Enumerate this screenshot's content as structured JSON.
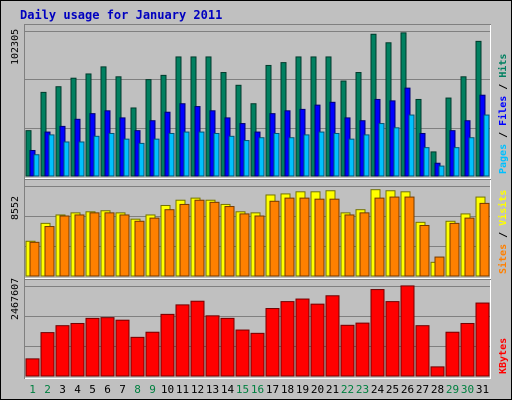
{
  "colors": {
    "background": "#c0c0c0",
    "title": "#0000c0",
    "hits": "#008060",
    "files": "#0000ff",
    "pages": "#00c0ff",
    "visits": "#ffff00",
    "sites": "#ff8000",
    "kbytes": "#ff0000",
    "weekday": "#000000",
    "weekend": "#008040"
  },
  "chart_data": {
    "type": "bar",
    "title": "Daily usage for January 2011",
    "categories": [
      "1",
      "2",
      "3",
      "4",
      "5",
      "6",
      "7",
      "8",
      "9",
      "10",
      "11",
      "12",
      "13",
      "14",
      "15",
      "16",
      "17",
      "18",
      "19",
      "20",
      "21",
      "22",
      "23",
      "24",
      "25",
      "26",
      "27",
      "28",
      "29",
      "30",
      "31"
    ],
    "weekend_days": [
      "1",
      "2",
      "8",
      "9",
      "15",
      "16",
      "22",
      "23",
      "29",
      "30"
    ],
    "panels": [
      {
        "name": "pages-files-hits",
        "max_label": "102305",
        "ylim": [
          0,
          102305
        ],
        "legend": [
          {
            "key": "pages",
            "label": "Pages",
            "color": "#00c0ff"
          },
          {
            "key": "sep1",
            "label": " / ",
            "color": "#000000"
          },
          {
            "key": "files",
            "label": "Files",
            "color": "#0000ff"
          },
          {
            "key": "sep2",
            "label": " / ",
            "color": "#000000"
          },
          {
            "key": "hits",
            "label": "Hits",
            "color": "#008060"
          }
        ],
        "series": [
          {
            "name": "Hits",
            "color": "#008060",
            "values": [
              32000,
              59000,
              63000,
              69000,
              72000,
              77000,
              70000,
              48000,
              68000,
              71000,
              84000,
              84000,
              84000,
              73000,
              64000,
              51000,
              78000,
              80000,
              84000,
              84000,
              84000,
              67000,
              73000,
              100000,
              94000,
              101000,
              54000,
              17000,
              55000,
              70000,
              95000
            ]
          },
          {
            "name": "Files",
            "color": "#0000ff",
            "values": [
              18000,
              31000,
              35000,
              40000,
              44000,
              46000,
              41000,
              32000,
              39000,
              45000,
              51000,
              49000,
              46000,
              41000,
              37000,
              31000,
              44000,
              46000,
              47000,
              50000,
              52000,
              41000,
              39000,
              54000,
              53000,
              62000,
              30000,
              9000,
              32000,
              39000,
              57000
            ]
          },
          {
            "name": "Pages",
            "color": "#00c0ff",
            "values": [
              15000,
              29000,
              24000,
              24000,
              28000,
              30000,
              26000,
              23000,
              26000,
              30000,
              31000,
              31000,
              30000,
              28000,
              25000,
              27000,
              30000,
              27000,
              29000,
              31000,
              30000,
              26000,
              29000,
              37000,
              34000,
              43000,
              20000,
              7000,
              20000,
              27000,
              43000
            ]
          }
        ]
      },
      {
        "name": "visits-sites",
        "max_label": "8552",
        "ylim": [
          0,
          8552
        ],
        "legend": [
          {
            "key": "sites",
            "label": "Sites",
            "color": "#ff8000"
          },
          {
            "key": "sep1",
            "label": " / ",
            "color": "#000000"
          },
          {
            "key": "visits",
            "label": "Visits",
            "color": "#ffff00"
          }
        ],
        "series": [
          {
            "name": "Visits",
            "color": "#ffff00",
            "values": [
              3300,
              5000,
              5800,
              6000,
              6100,
              6200,
              6000,
              5400,
              5800,
              6700,
              7200,
              7400,
              7200,
              6800,
              6100,
              6000,
              7700,
              7800,
              8000,
              8000,
              8100,
              6000,
              6300,
              8200,
              8100,
              8000,
              5100,
              1300,
              5200,
              5900,
              7500
            ]
          },
          {
            "name": "Sites",
            "color": "#ff8000",
            "values": [
              3200,
              4700,
              5700,
              5800,
              6000,
              6000,
              5800,
              5200,
              5500,
              6300,
              6800,
              7200,
              7000,
              6600,
              5900,
              5700,
              7100,
              7400,
              7400,
              7300,
              7300,
              5800,
              6000,
              7400,
              7500,
              7500,
              4800,
              1800,
              5000,
              5500,
              6900
            ]
          }
        ]
      },
      {
        "name": "kbytes",
        "max_label": "2467607",
        "ylim": [
          0,
          2467607
        ],
        "legend": [
          {
            "key": "kbytes",
            "label": "KBytes",
            "color": "#ff0000"
          }
        ],
        "series": [
          {
            "name": "KBytes",
            "color": "#ff0000",
            "values": [
              470000,
              1190000,
              1380000,
              1440000,
              1580000,
              1600000,
              1530000,
              1060000,
              1200000,
              1690000,
              1950000,
              2050000,
              1650000,
              1580000,
              1260000,
              1170000,
              1850000,
              2040000,
              2110000,
              1970000,
              2200000,
              1390000,
              1450000,
              2370000,
              2040000,
              2470000,
              1380000,
              250000,
              1200000,
              1440000,
              2000000
            ]
          }
        ]
      }
    ]
  }
}
